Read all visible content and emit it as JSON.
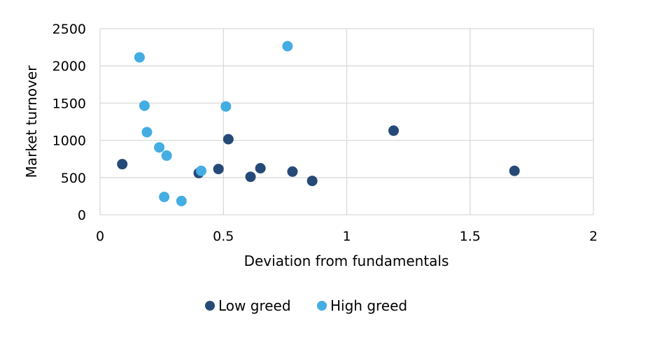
{
  "chart_data": {
    "type": "scatter",
    "title": "",
    "xlabel": "Deviation from fundamentals",
    "ylabel": "Market turnover",
    "xlim": [
      0,
      2
    ],
    "ylim": [
      0,
      2500
    ],
    "x_ticks": [
      0,
      0.5,
      1,
      1.5,
      2
    ],
    "x_tick_labels": [
      "0",
      "0.5",
      "1",
      "1.5",
      "2"
    ],
    "y_ticks": [
      0,
      500,
      1000,
      1500,
      2000,
      2500
    ],
    "y_tick_labels": [
      "0",
      "500",
      "1000",
      "1500",
      "2000",
      "2500"
    ],
    "grid": true,
    "legend_position": "bottom",
    "series": [
      {
        "name": "Low greed",
        "color": "#264a78",
        "points": [
          {
            "x": 0.09,
            "y": 680
          },
          {
            "x": 0.4,
            "y": 560
          },
          {
            "x": 0.48,
            "y": 615
          },
          {
            "x": 0.52,
            "y": 1015
          },
          {
            "x": 0.61,
            "y": 510
          },
          {
            "x": 0.65,
            "y": 625
          },
          {
            "x": 0.78,
            "y": 580
          },
          {
            "x": 0.86,
            "y": 455
          },
          {
            "x": 1.19,
            "y": 1130
          },
          {
            "x": 1.68,
            "y": 590
          }
        ]
      },
      {
        "name": "High greed",
        "color": "#44ade2",
        "points": [
          {
            "x": 0.16,
            "y": 2115
          },
          {
            "x": 0.18,
            "y": 1465
          },
          {
            "x": 0.19,
            "y": 1110
          },
          {
            "x": 0.24,
            "y": 905
          },
          {
            "x": 0.26,
            "y": 240
          },
          {
            "x": 0.27,
            "y": 795
          },
          {
            "x": 0.33,
            "y": 185
          },
          {
            "x": 0.41,
            "y": 590
          },
          {
            "x": 0.51,
            "y": 1455
          },
          {
            "x": 0.76,
            "y": 2265
          }
        ]
      }
    ]
  }
}
